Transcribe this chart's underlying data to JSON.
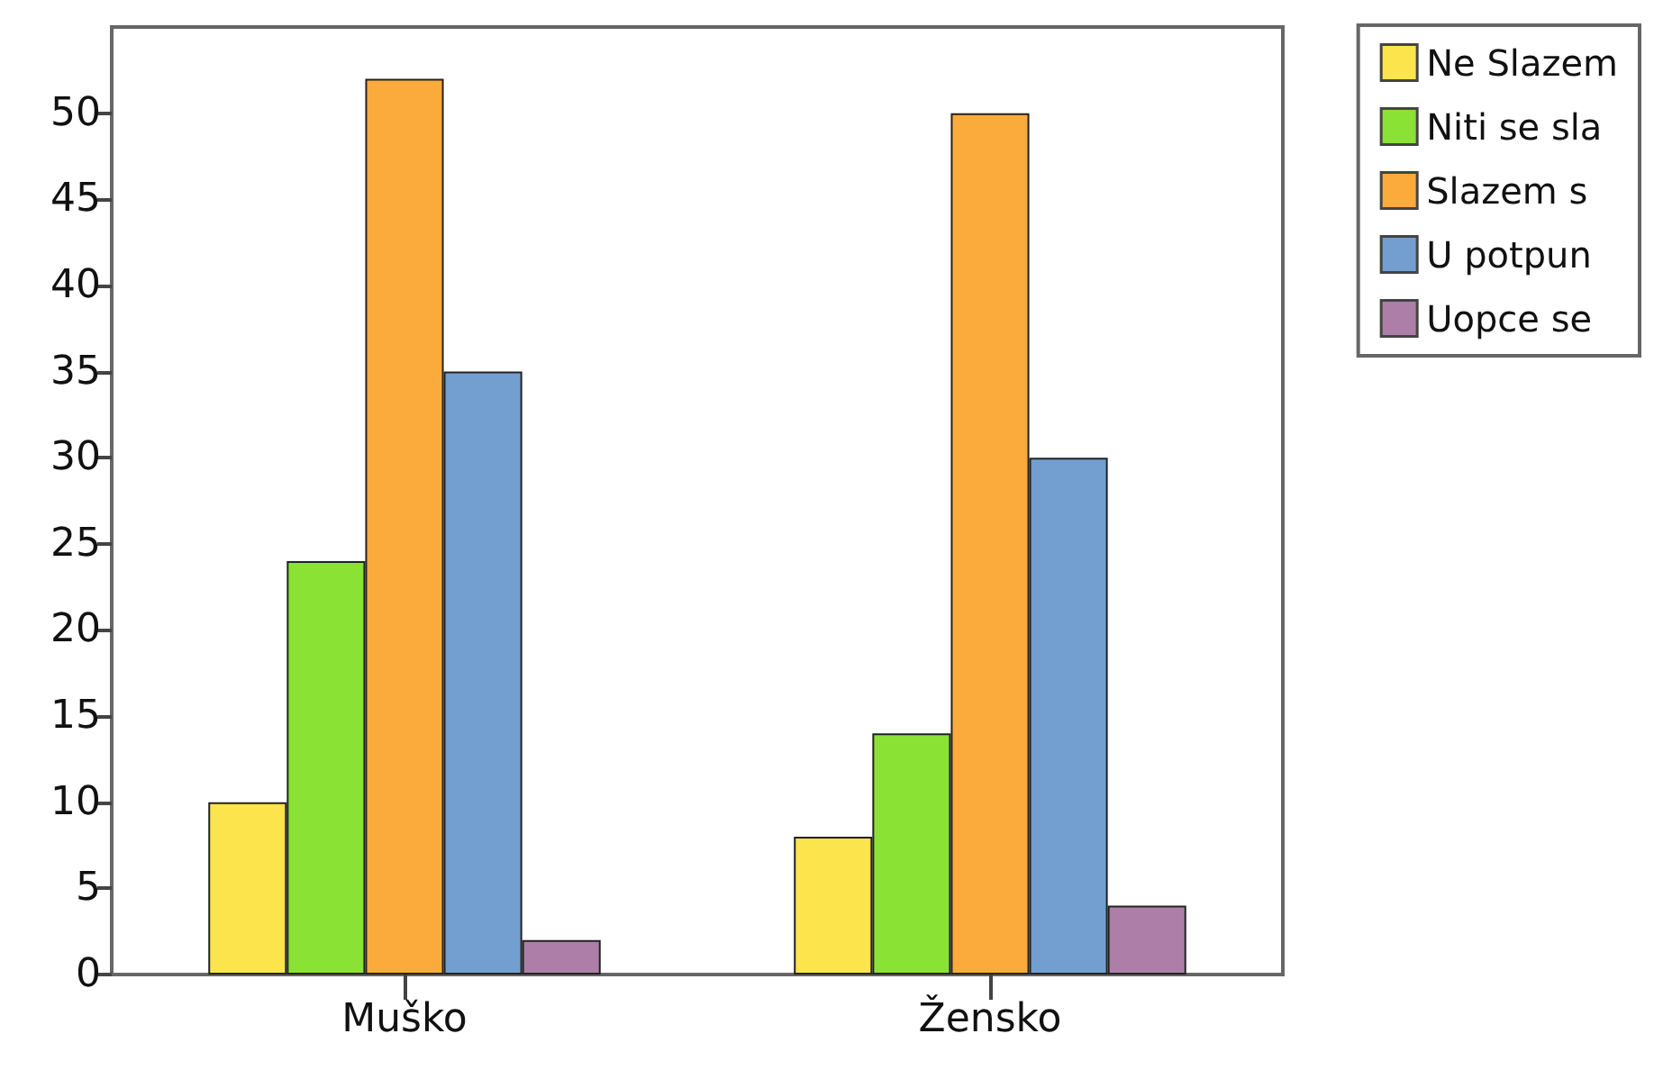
{
  "chart_data": {
    "type": "bar",
    "categories": [
      "Muško",
      "Žensko"
    ],
    "series": [
      {
        "name": "Ne Slazem",
        "color": "#fce44c",
        "values": [
          10,
          8
        ]
      },
      {
        "name": "Niti se sla",
        "color": "#8ae234",
        "values": [
          24,
          14
        ]
      },
      {
        "name": "Slazem s",
        "color": "#fbab3c",
        "values": [
          52,
          50
        ]
      },
      {
        "name": "U potpun",
        "color": "#729fcf",
        "values": [
          35,
          30
        ]
      },
      {
        "name": "Uopce se",
        "color": "#ad7fa8",
        "values": [
          2,
          4
        ]
      }
    ],
    "ylim": [
      0,
      55
    ],
    "yticks": [
      0,
      5,
      10,
      15,
      20,
      25,
      30,
      35,
      40,
      45,
      50
    ],
    "grid": false,
    "legend": "top right"
  }
}
